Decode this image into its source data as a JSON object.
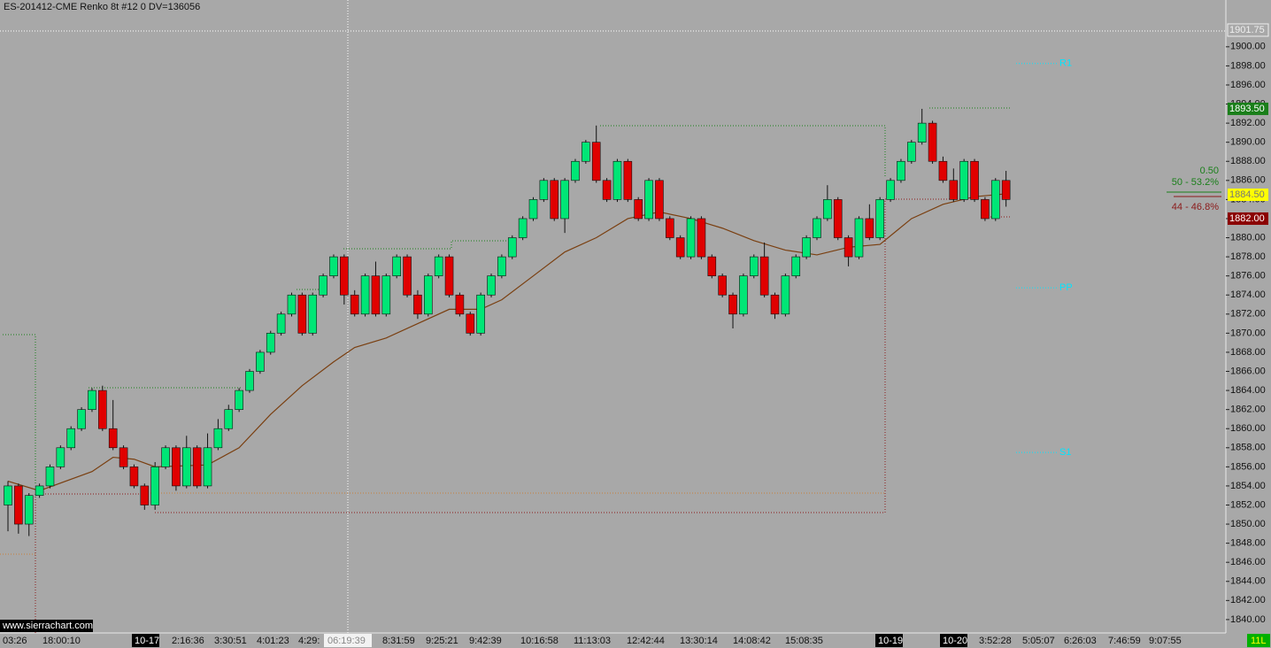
{
  "chart_data": {
    "type": "candlestick",
    "title": "ES-201412-CME  Renko 8t  #12 0 DV=136056",
    "watermark": "www.sierrachart.com",
    "up_color": "#00e676",
    "down_color": "#e00000",
    "open": [
      1852,
      1854,
      1850,
      1853,
      1854,
      1856,
      1858,
      1860,
      1862,
      1864,
      1860,
      1858,
      1856,
      1854,
      1852,
      1856,
      1858,
      1854,
      1858,
      1854,
      1858,
      1860,
      1862,
      1864,
      1866,
      1868,
      1870,
      1872,
      1874,
      1870,
      1874,
      1876,
      1878,
      1874,
      1872,
      1876,
      1872,
      1876,
      1878,
      1874,
      1872,
      1876,
      1878,
      1874,
      1872,
      1870,
      1874,
      1876,
      1878,
      1880,
      1882,
      1884,
      1886,
      1882,
      1886,
      1888,
      1890,
      1886,
      1884,
      1888,
      1884,
      1882,
      1886,
      1882,
      1880,
      1878,
      1882,
      1878,
      1876,
      1874,
      1872,
      1876,
      1878,
      1874,
      1872,
      1876,
      1878,
      1880,
      1882,
      1884,
      1880,
      1878,
      1882,
      1880,
      1884,
      1886,
      1888,
      1890,
      1892,
      1888,
      1886,
      1884,
      1888,
      1884,
      1882,
      1886
    ],
    "close": [
      1854,
      1850,
      1853,
      1854,
      1856,
      1858,
      1860,
      1862,
      1864,
      1860,
      1858,
      1856,
      1854,
      1852,
      1856,
      1858,
      1854,
      1858,
      1854,
      1858,
      1860,
      1862,
      1864,
      1866,
      1868,
      1870,
      1872,
      1874,
      1870,
      1874,
      1876,
      1878,
      1874,
      1872,
      1876,
      1872,
      1876,
      1878,
      1874,
      1872,
      1876,
      1878,
      1874,
      1872,
      1870,
      1874,
      1876,
      1878,
      1880,
      1882,
      1884,
      1886,
      1882,
      1886,
      1888,
      1890,
      1886,
      1884,
      1888,
      1884,
      1882,
      1886,
      1882,
      1880,
      1878,
      1882,
      1878,
      1876,
      1874,
      1872,
      1876,
      1878,
      1874,
      1872,
      1876,
      1878,
      1880,
      1882,
      1884,
      1880,
      1878,
      1882,
      1880,
      1884,
      1886,
      1888,
      1890,
      1892,
      1888,
      1886,
      1884,
      1888,
      1884,
      1882,
      1886,
      1884
    ],
    "high": [
      1854.5,
      1854.25,
      1853.25,
      1854.25,
      1856.25,
      1858.25,
      1860.25,
      1862.25,
      1864.25,
      1864.5,
      1863,
      1858.25,
      1856.25,
      1854.25,
      1856.5,
      1858.25,
      1858.25,
      1859.25,
      1858.25,
      1859.5,
      1861,
      1862.5,
      1864.25,
      1866.25,
      1868.25,
      1870.25,
      1872.25,
      1874.25,
      1874.25,
      1874.25,
      1876.25,
      1878.25,
      1878.25,
      1874.5,
      1876.25,
      1877.5,
      1876.25,
      1878.25,
      1878.25,
      1874.5,
      1876.25,
      1878.25,
      1878.25,
      1874.25,
      1872.25,
      1874.25,
      1876.25,
      1878.25,
      1880.25,
      1882.25,
      1884.25,
      1886.25,
      1886.25,
      1886.25,
      1888.25,
      1890.25,
      1891.75,
      1886.25,
      1888.25,
      1888.25,
      1884.25,
      1886.25,
      1886.25,
      1882.25,
      1880.25,
      1882.25,
      1882.25,
      1878.25,
      1876.25,
      1874.25,
      1876.25,
      1878.25,
      1879.5,
      1874.25,
      1876.25,
      1878.25,
      1880.25,
      1882.25,
      1885.5,
      1884.25,
      1880.25,
      1882.25,
      1883.5,
      1884.25,
      1886.25,
      1888.25,
      1890.25,
      1893.5,
      1892.25,
      1888.5,
      1887.25,
      1888.25,
      1888.25,
      1884.25,
      1886.25,
      1887
    ],
    "low": [
      1849.25,
      1849,
      1848.75,
      1852.75,
      1853.75,
      1855.75,
      1857.75,
      1859.75,
      1861.75,
      1859.75,
      1857.75,
      1855.75,
      1853.75,
      1851.5,
      1851.5,
      1855.75,
      1853.5,
      1853.75,
      1853.75,
      1853.75,
      1857.75,
      1859.75,
      1861.75,
      1863.75,
      1865.75,
      1867.75,
      1869.75,
      1871.75,
      1869.75,
      1869.75,
      1873.75,
      1875.75,
      1873,
      1871.75,
      1871.75,
      1871.75,
      1871.75,
      1875.75,
      1873.75,
      1871.5,
      1871.75,
      1875.75,
      1873.75,
      1871.75,
      1869.75,
      1869.75,
      1873.75,
      1875.75,
      1877.75,
      1879.75,
      1881.75,
      1883.75,
      1881.75,
      1880.5,
      1885.75,
      1887.75,
      1885.75,
      1883.75,
      1883.75,
      1883.75,
      1881.75,
      1881.75,
      1881.75,
      1879.75,
      1877.75,
      1877.75,
      1877.75,
      1875.75,
      1873.75,
      1870.5,
      1871.75,
      1875.75,
      1873.75,
      1871.5,
      1871.75,
      1875.75,
      1877.75,
      1879.75,
      1881.75,
      1879.75,
      1877,
      1877.75,
      1879.75,
      1879.75,
      1883.75,
      1885.75,
      1887.75,
      1889.75,
      1887.75,
      1885.75,
      1883.75,
      1883.75,
      1883.75,
      1881.75,
      1881.75,
      1883.25
    ],
    "moving_average": {
      "color": "#7a3f10",
      "x": [
        0,
        3,
        8,
        10,
        12,
        14,
        19,
        22,
        25,
        28,
        31,
        33,
        36,
        39,
        42,
        45,
        47,
        50,
        53,
        56,
        59,
        62,
        65,
        68,
        71,
        74,
        77,
        80,
        83,
        86,
        89,
        92,
        95
      ],
      "values": [
        1854.5,
        1853.5,
        1855.5,
        1857,
        1856.8,
        1856,
        1856.2,
        1858,
        1861.5,
        1864.5,
        1867,
        1868.5,
        1869.5,
        1871,
        1872.5,
        1872.5,
        1873.5,
        1876,
        1878.5,
        1880,
        1882,
        1882.7,
        1882,
        1881,
        1879.7,
        1878.7,
        1878.2,
        1879,
        1879.3,
        1882,
        1883.5,
        1884.3,
        1884.6
      ]
    },
    "pivots": [
      {
        "name": "R1",
        "value": 1898.25
      },
      {
        "name": "PP",
        "value": 1874.75
      },
      {
        "name": "S1",
        "value": 1857.5
      }
    ],
    "pivot_color": "#00e5ff",
    "price_labels": [
      {
        "value": 1901.75,
        "label": "1901.75",
        "color": "#a8a8a8"
      },
      {
        "value": 1893.5,
        "label": "1893.50",
        "color": "#1a7f1a"
      },
      {
        "value": 1884.5,
        "label": "1884.50",
        "color": "#ffff00"
      },
      {
        "value": 1882,
        "label": "1882.00",
        "color": "#8b0000"
      }
    ],
    "annotations": [
      {
        "text": "0.50",
        "color": "#1a7f1a"
      },
      {
        "text": "50 - 53.2%",
        "color": "#1a7f1a"
      },
      {
        "text": "44 - 46.8%",
        "color": "#8b1a1a"
      }
    ],
    "x_labels": [
      "03:26",
      "18:00:10",
      "10-17",
      "2:16:36",
      "3:30:51",
      "4:01:23",
      "4:29:",
      "8:31:59",
      "9:25:21",
      "9:42:39",
      "10:16:58",
      "11:13:03",
      "12:42:44",
      "13:30:14",
      "14:08:42",
      "15:08:35",
      "10-19",
      "10-20",
      "3:52:28",
      "5:05:07",
      "6:26:03",
      "7:46:59",
      "9:07:55"
    ],
    "crosshair_time": "06:19:39",
    "status": "11L",
    "ylim": [
      1838.6,
      1904.9
    ],
    "yticks": [
      {
        "value": 1840,
        "label": "1840.00"
      },
      {
        "value": 1842,
        "label": "1842.00"
      },
      {
        "value": 1844,
        "label": "1844.00"
      },
      {
        "value": 1846,
        "label": "1846.00"
      },
      {
        "value": 1848,
        "label": "1848.00"
      },
      {
        "value": 1850,
        "label": "1850.00"
      },
      {
        "value": 1852,
        "label": "1852.00"
      },
      {
        "value": 1854,
        "label": "1854.00"
      },
      {
        "value": 1856,
        "label": "1856.00"
      },
      {
        "value": 1858,
        "label": "1858.00"
      },
      {
        "value": 1860,
        "label": "1860.00"
      },
      {
        "value": 1862,
        "label": "1862.00"
      },
      {
        "value": 1864,
        "label": "1864.00"
      },
      {
        "value": 1866,
        "label": "1866.00"
      },
      {
        "value": 1868,
        "label": "1868.00"
      },
      {
        "value": 1870,
        "label": "1870.00"
      },
      {
        "value": 1872,
        "label": "1872.00"
      },
      {
        "value": 1874,
        "label": "1874.00"
      },
      {
        "value": 1876,
        "label": "1876.00"
      },
      {
        "value": 1878,
        "label": "1878.00"
      },
      {
        "value": 1880,
        "label": "1880.00"
      },
      {
        "value": 1882,
        "label": "1882.00"
      },
      {
        "value": 1884,
        "label": "1884.00"
      },
      {
        "value": 1886,
        "label": "1886.00"
      },
      {
        "value": 1888,
        "label": "1888.00"
      },
      {
        "value": 1890,
        "label": "1890.00"
      },
      {
        "value": 1892,
        "label": "1892.00"
      },
      {
        "value": 1894,
        "label": "1894.00"
      },
      {
        "value": 1896,
        "label": "1896.00"
      },
      {
        "value": 1898,
        "label": "1898.00"
      },
      {
        "value": 1900,
        "label": "1900.00"
      }
    ]
  }
}
